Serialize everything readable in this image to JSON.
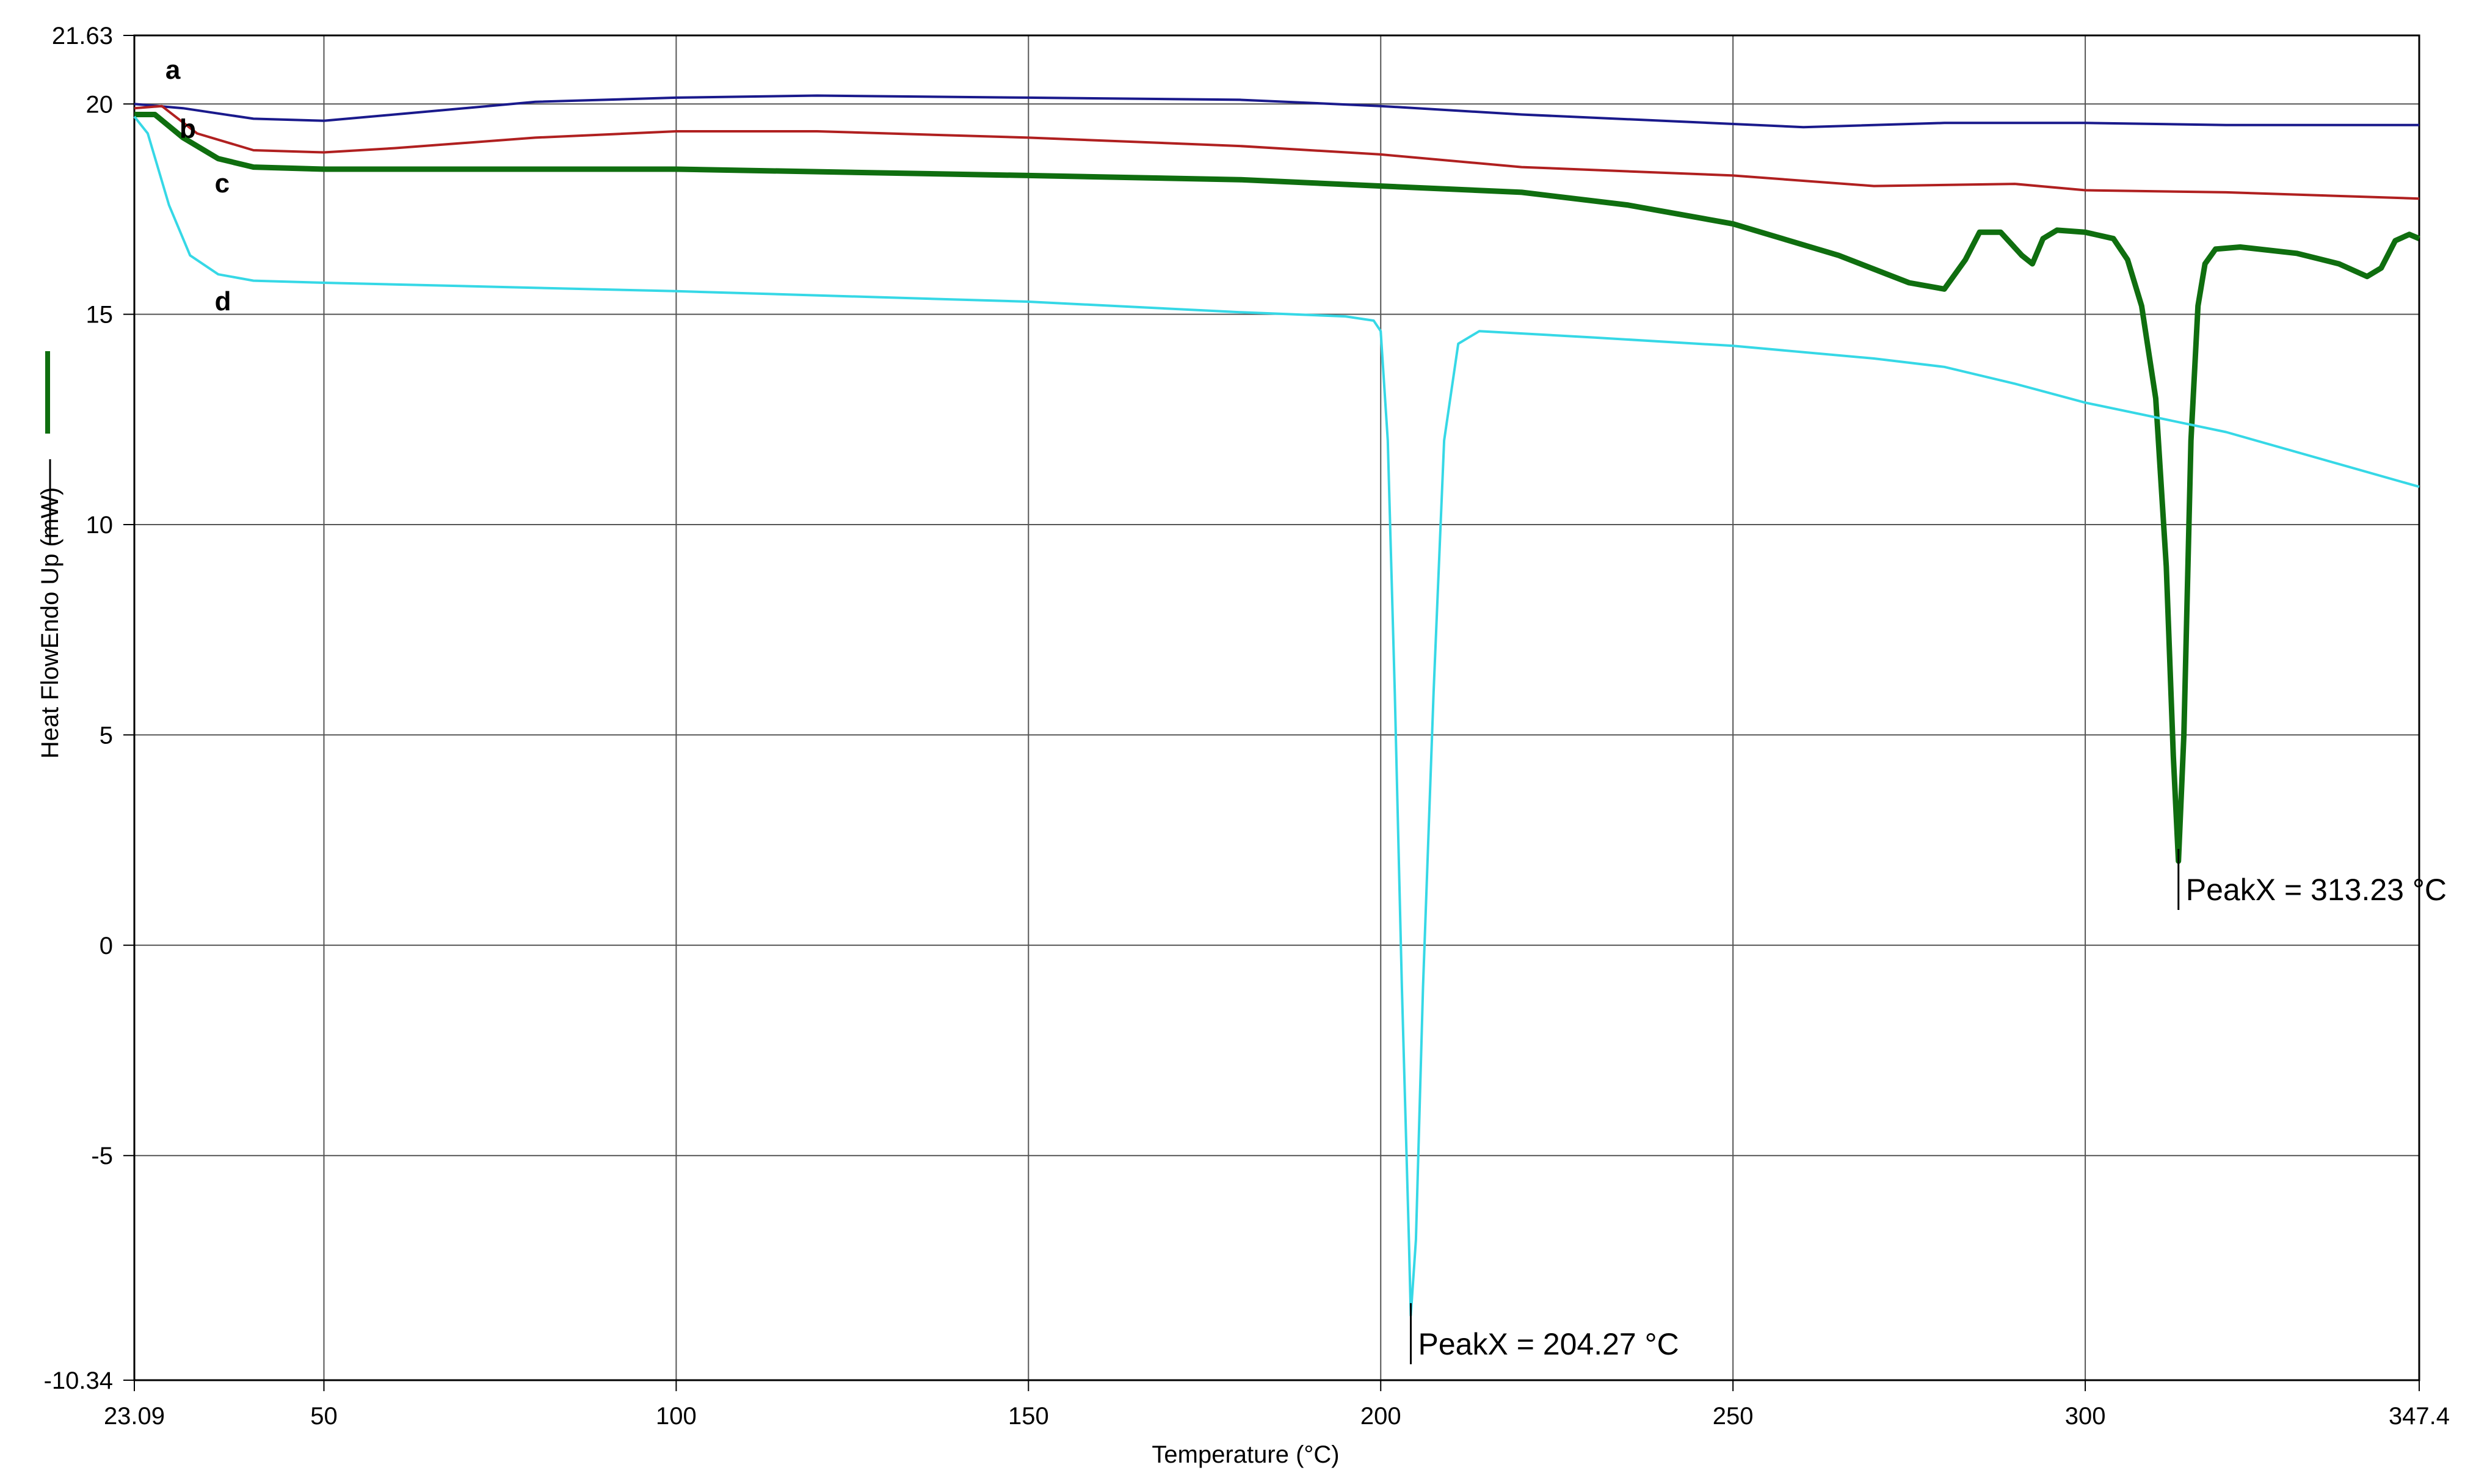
{
  "chart_data": {
    "type": "line",
    "title": "",
    "xlabel": "Temperature (°C)",
    "ylabel": "Heat FlowEndo Up (mW)",
    "xlim": [
      23.09,
      347.4
    ],
    "ylim": [
      -10.34,
      21.63
    ],
    "xticks": [
      {
        "value": 23.09,
        "label": "23.09"
      },
      {
        "value": 50,
        "label": "50"
      },
      {
        "value": 100,
        "label": "100"
      },
      {
        "value": 150,
        "label": "150"
      },
      {
        "value": 200,
        "label": "200"
      },
      {
        "value": 250,
        "label": "250"
      },
      {
        "value": 300,
        "label": "300"
      },
      {
        "value": 347.4,
        "label": "347.4"
      }
    ],
    "yticks": [
      {
        "value": 21.63,
        "label": "21.63"
      },
      {
        "value": 20,
        "label": "20"
      },
      {
        "value": 15,
        "label": "15"
      },
      {
        "value": 10,
        "label": "10"
      },
      {
        "value": 5,
        "label": "5"
      },
      {
        "value": 0,
        "label": "0"
      },
      {
        "value": -5,
        "label": "-5"
      },
      {
        "value": -10.34,
        "label": "-10.34"
      }
    ],
    "grid": true,
    "series": [
      {
        "name": "a",
        "color": "#1a1a8c",
        "points": [
          [
            23.09,
            20.0
          ],
          [
            30,
            19.9
          ],
          [
            40,
            19.65
          ],
          [
            50,
            19.6
          ],
          [
            60,
            19.75
          ],
          [
            80,
            20.05
          ],
          [
            100,
            20.15
          ],
          [
            120,
            20.2
          ],
          [
            150,
            20.15
          ],
          [
            180,
            20.1
          ],
          [
            200,
            19.95
          ],
          [
            220,
            19.75
          ],
          [
            240,
            19.6
          ],
          [
            260,
            19.45
          ],
          [
            280,
            19.55
          ],
          [
            300,
            19.55
          ],
          [
            320,
            19.5
          ],
          [
            347.4,
            19.5
          ]
        ]
      },
      {
        "name": "b",
        "color": "#b02020",
        "points": [
          [
            23.09,
            19.9
          ],
          [
            27,
            19.95
          ],
          [
            32,
            19.3
          ],
          [
            40,
            18.9
          ],
          [
            50,
            18.85
          ],
          [
            60,
            18.95
          ],
          [
            80,
            19.2
          ],
          [
            100,
            19.35
          ],
          [
            120,
            19.35
          ],
          [
            150,
            19.2
          ],
          [
            180,
            19.0
          ],
          [
            200,
            18.8
          ],
          [
            220,
            18.5
          ],
          [
            250,
            18.3
          ],
          [
            270,
            18.05
          ],
          [
            290,
            18.1
          ],
          [
            300,
            17.95
          ],
          [
            320,
            17.9
          ],
          [
            347.4,
            17.75
          ]
        ]
      },
      {
        "name": "c",
        "color": "#0f6e0f",
        "points": [
          [
            23.09,
            19.75
          ],
          [
            26,
            19.75
          ],
          [
            30,
            19.2
          ],
          [
            35,
            18.7
          ],
          [
            40,
            18.5
          ],
          [
            50,
            18.45
          ],
          [
            100,
            18.45
          ],
          [
            150,
            18.3
          ],
          [
            180,
            18.2
          ],
          [
            200,
            18.05
          ],
          [
            220,
            17.9
          ],
          [
            235,
            17.6
          ],
          [
            250,
            17.15
          ],
          [
            265,
            16.4
          ],
          [
            275,
            15.75
          ],
          [
            280,
            15.6
          ],
          [
            283,
            16.3
          ],
          [
            285,
            16.95
          ],
          [
            288,
            16.95
          ],
          [
            291,
            16.4
          ],
          [
            292.5,
            16.2
          ],
          [
            294,
            16.8
          ],
          [
            296,
            17.0
          ],
          [
            300,
            16.95
          ],
          [
            304,
            16.8
          ],
          [
            306,
            16.3
          ],
          [
            308,
            15.2
          ],
          [
            310,
            13.0
          ],
          [
            311.5,
            9.0
          ],
          [
            312.5,
            4.5
          ],
          [
            313.23,
            2.0
          ],
          [
            314,
            5.0
          ],
          [
            315,
            12.0
          ],
          [
            316,
            15.2
          ],
          [
            317,
            16.2
          ],
          [
            318.5,
            16.55
          ],
          [
            322,
            16.6
          ],
          [
            330,
            16.45
          ],
          [
            336,
            16.2
          ],
          [
            340,
            15.9
          ],
          [
            342,
            16.1
          ],
          [
            344,
            16.75
          ],
          [
            346,
            16.9
          ],
          [
            347.4,
            16.8
          ]
        ]
      },
      {
        "name": "d",
        "color": "#36d8e6",
        "points": [
          [
            23.09,
            19.7
          ],
          [
            25,
            19.3
          ],
          [
            28,
            17.6
          ],
          [
            31,
            16.4
          ],
          [
            35,
            15.95
          ],
          [
            40,
            15.8
          ],
          [
            50,
            15.75
          ],
          [
            100,
            15.55
          ],
          [
            150,
            15.3
          ],
          [
            180,
            15.05
          ],
          [
            195,
            14.95
          ],
          [
            199,
            14.85
          ],
          [
            200,
            14.6
          ],
          [
            201,
            12.0
          ],
          [
            202,
            6.0
          ],
          [
            203,
            -1.0
          ],
          [
            204,
            -7.0
          ],
          [
            204.27,
            -8.8
          ],
          [
            205,
            -7.0
          ],
          [
            206,
            -1.0
          ],
          [
            207.5,
            6.0
          ],
          [
            209,
            12.0
          ],
          [
            211,
            14.3
          ],
          [
            214,
            14.6
          ],
          [
            230,
            14.45
          ],
          [
            250,
            14.25
          ],
          [
            270,
            13.95
          ],
          [
            280,
            13.75
          ],
          [
            290,
            13.35
          ],
          [
            300,
            12.9
          ],
          [
            320,
            12.2
          ],
          [
            347.4,
            10.9
          ]
        ]
      }
    ],
    "annotations": [
      {
        "text": "PeakX = 204.27 °C",
        "x": 204.27,
        "y": -8.8
      },
      {
        "text": "PeakX = 313.23 °C",
        "x": 313.23,
        "y": 2.0
      }
    ],
    "series_label_anchors": [
      {
        "series": "a",
        "x": 27.5,
        "y": 20.6
      },
      {
        "series": "b",
        "x": 29.5,
        "y": 19.2
      },
      {
        "series": "c",
        "x": 34.5,
        "y": 17.9
      },
      {
        "series": "d",
        "x": 34.5,
        "y": 15.1
      }
    ]
  }
}
